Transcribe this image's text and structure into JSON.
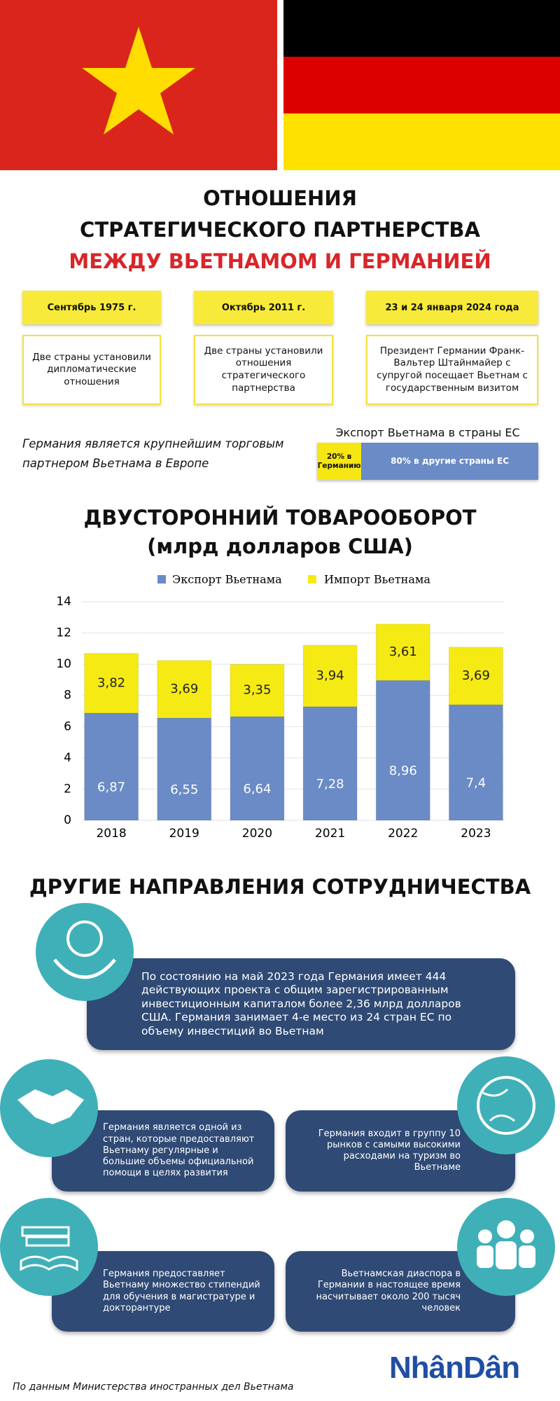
{
  "header": {
    "title_lines": [
      "ОТНОШЕНИЯ",
      "СТРАТЕГИЧЕСКОГО ПАРТНЕРСТВА",
      "МЕЖДУ ВЬЕТНАМОМ И ГЕРМАНИЕЙ"
    ]
  },
  "timeline": [
    {
      "date": "Сентябрь 1975 г.",
      "text": "Две страны установили дипломатические отношения"
    },
    {
      "date": "Октябрь 2011 г.",
      "text": "Две страны установили отношения стратегического партнерства"
    },
    {
      "date": "23 и 24 января 2024 года",
      "text": "Президент Германии Франк-Вальтер Штайнмайер с супругой посещает Вьетнам с государственным визитом"
    }
  ],
  "trade_note": "Германия является крупнейшим торговым партнером Вьетнама в Европе",
  "chart_data": [
    {
      "type": "bar",
      "orientation": "horizontal",
      "stacked": true,
      "title": "Экспорт Вьетнама в страны ЕС",
      "values": [
        20,
        80
      ],
      "value_labels": [
        "20% в Германию",
        "80% в другие страны ЕС"
      ],
      "colors": [
        "#f5e614",
        "#6a8bc6"
      ]
    },
    {
      "type": "bar",
      "stacked": true,
      "title": "ДВУСТОРОННИЙ ТОВАРООБОРОТ",
      "subtitle": "(млрд долларов США)",
      "categories": [
        "2018",
        "2019",
        "2020",
        "2021",
        "2022",
        "2023"
      ],
      "series": [
        {
          "name": "Экспорт Вьетнама",
          "color": "#6a8bc6",
          "values": [
            6.87,
            6.55,
            6.64,
            7.28,
            8.96,
            7.4
          ],
          "value_labels": [
            "6,87",
            "6,55",
            "6,64",
            "7,28",
            "8,96",
            "7,4"
          ]
        },
        {
          "name": "Импорт Вьетнама",
          "color": "#f5ea14",
          "values": [
            3.82,
            3.69,
            3.35,
            3.94,
            3.61,
            3.69
          ],
          "value_labels": [
            "3,82",
            "3,69",
            "3,35",
            "3,94",
            "3,61",
            "3,69"
          ]
        }
      ],
      "ylim": [
        0,
        14
      ],
      "yticks": [
        0,
        2,
        4,
        6,
        8,
        10,
        12,
        14
      ],
      "grid": true,
      "legend": "top"
    }
  ],
  "cooperation": {
    "title": "ДРУГИЕ НАПРАВЛЕНИЯ СОТРУДНИЧЕСТВА",
    "items": [
      "По состоянию на май 2023 года Германия имеет 444 действующих проекта с общим зарегистрированным инвестиционным капиталом более 2,36 млрд долларов США. Германия занимает 4-е место из 24 стран ЕС по объему инвестиций во Вьетнам",
      "Германия является одной из стран, которые предоставляют Вьетнаму регулярные и большие объемы официальной помощи в целях развития",
      "Германия входит в группу 10 рынков с самыми высокими расходами на туризм во Вьетнаме",
      "Германия предоставляет Вьетнаму множество стипендий для обучения в магистратуре и докторантуре",
      "Вьетнамская диаспора в Германии в настоящее время насчитывает около 200 тысяч человек"
    ]
  },
  "source": "По данным Министерства иностранных дел Вьетнама",
  "logo": "NhânDân"
}
